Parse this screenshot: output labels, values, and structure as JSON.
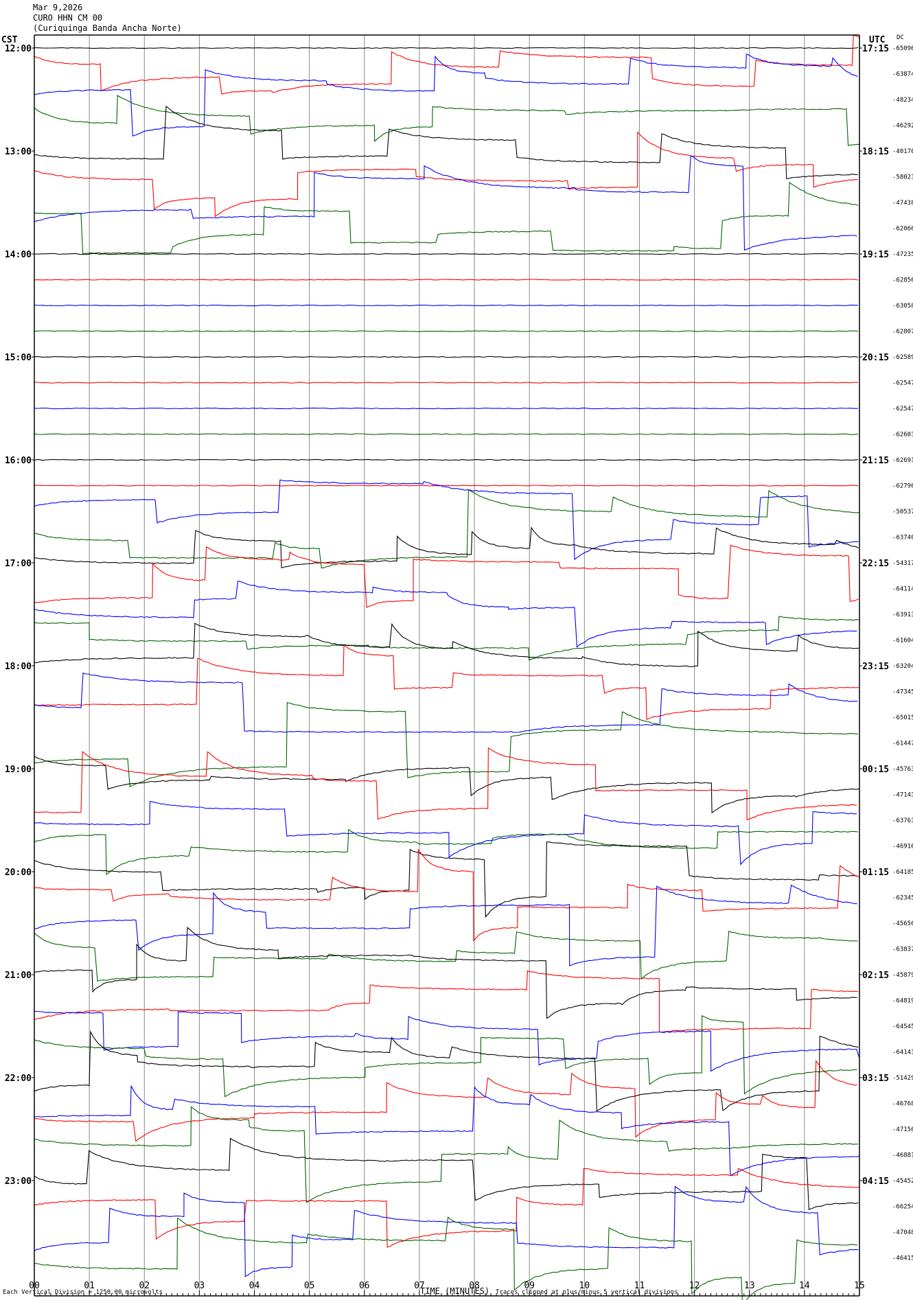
{
  "header": {
    "date": "Mar 9,2026",
    "station": "CURO HHN CM 00",
    "name": "(Curiquinga Banda Ancha Norte)"
  },
  "footer": {
    "division_note": "Each Vertical Division = 1250.00 microvolts",
    "xlabel": "TIME (MINUTES)",
    "clip_note": "Traces clipped at plus/minus 5 vertical divisions"
  },
  "chart_data": {
    "type": "line",
    "title": "",
    "left_axis_label": "CST",
    "right_axis_label": "UTC",
    "dc_label": "DC",
    "xlim": [
      0,
      15
    ],
    "x_ticks": [
      "00",
      "01",
      "02",
      "03",
      "04",
      "05",
      "06",
      "07",
      "08",
      "09",
      "10",
      "11",
      "12",
      "13",
      "14",
      "15"
    ],
    "trace_colors": [
      "#000000",
      "#ff0000",
      "#0000ff",
      "#006400"
    ],
    "hours": [
      {
        "cst": "12:00",
        "utc": "17:15"
      },
      {
        "cst": "13:00",
        "utc": "18:15"
      },
      {
        "cst": "14:00",
        "utc": "19:15"
      },
      {
        "cst": "15:00",
        "utc": "20:15"
      },
      {
        "cst": "16:00",
        "utc": "21:15"
      },
      {
        "cst": "17:00",
        "utc": "22:15"
      },
      {
        "cst": "18:00",
        "utc": "23:15"
      },
      {
        "cst": "19:00",
        "utc": "00:15"
      },
      {
        "cst": "20:00",
        "utc": "01:15"
      },
      {
        "cst": "21:00",
        "utc": "02:15"
      },
      {
        "cst": "22:00",
        "utc": "03:15"
      },
      {
        "cst": "23:00",
        "utc": "04:15"
      }
    ],
    "dc_offsets": [
      "-65096",
      "-63874",
      "-48234",
      "-46292",
      "-40170",
      "-58023",
      "-47438",
      "-62066",
      "-47235",
      "-62856",
      "-63058",
      "-62807",
      "-62589",
      "-62547",
      "-62547",
      "-62603",
      "-62691",
      "-62790",
      "-50537",
      "-63740",
      "-54317",
      "-64114",
      "-63913",
      "-61604",
      "-63204",
      "-47345",
      "-65015",
      "-61447",
      "-45763",
      "-47143",
      "-63763",
      "-46916",
      "-64185",
      "-62345",
      "-45656",
      "-63837",
      "-45879",
      "-64819",
      "-64545",
      "-64143",
      "-51429",
      "-46768",
      "-47156",
      "-46881",
      "-45452",
      "-66254",
      "-47048",
      "-46415"
    ],
    "trace_activity": [
      0,
      1,
      1,
      1,
      1,
      1,
      1,
      1,
      0,
      0,
      0,
      0,
      0,
      0,
      0,
      0,
      0,
      0,
      1,
      1,
      1,
      1,
      1,
      1,
      1,
      1,
      1,
      1,
      1,
      1,
      1,
      1,
      1,
      1,
      1,
      1,
      1,
      1,
      1,
      1,
      1,
      1,
      1,
      1,
      1,
      1,
      1,
      1
    ]
  }
}
